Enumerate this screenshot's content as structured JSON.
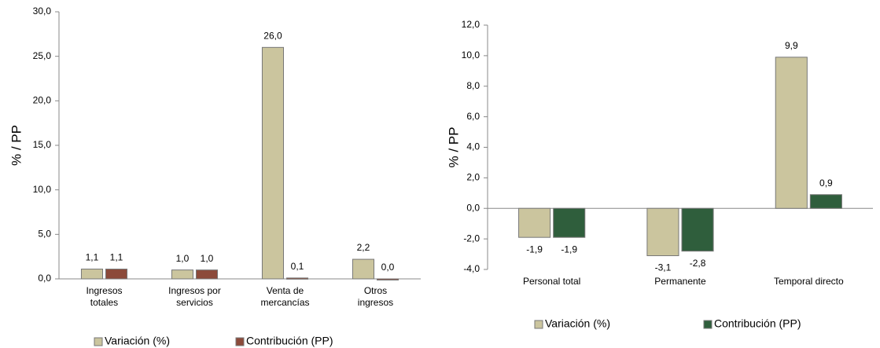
{
  "chart_data": [
    {
      "type": "bar",
      "y_label": "% / PP",
      "categories": [
        "Ingresos totales",
        "Ingresos por servicios",
        "Venta de mercancías",
        "Otros ingresos"
      ],
      "series": [
        {
          "name": "Variación (%)",
          "color": "#cbc59e",
          "values": [
            1.1,
            1.0,
            26.0,
            2.2
          ],
          "value_labels": [
            "1,1",
            "1,0",
            "26,0",
            "2,2"
          ]
        },
        {
          "name": "Contribución (PP)",
          "color": "#8c4a3a",
          "values": [
            1.1,
            1.0,
            0.1,
            0.0
          ],
          "value_labels": [
            "1,1",
            "1,0",
            "0,1",
            "0,0"
          ]
        }
      ],
      "ylim": [
        0,
        30
      ],
      "yticks": [
        {
          "value": 0,
          "label": "0,0"
        },
        {
          "value": 5,
          "label": "5,0"
        },
        {
          "value": 10,
          "label": "10,0"
        },
        {
          "value": 15,
          "label": "15,0"
        },
        {
          "value": 20,
          "label": "20,0"
        },
        {
          "value": 25,
          "label": "25,0"
        },
        {
          "value": 30,
          "label": "30,0"
        }
      ]
    },
    {
      "type": "bar",
      "y_label": "% / PP",
      "categories": [
        "Personal total",
        "Permanente",
        "Temporal directo"
      ],
      "series": [
        {
          "name": "Variación (%)",
          "color": "#cbc59e",
          "values": [
            -1.9,
            -3.1,
            9.9
          ],
          "value_labels": [
            "-1,9",
            "-3,1",
            "9,9"
          ]
        },
        {
          "name": "Contribución (PP)",
          "color": "#2f5e3c",
          "values": [
            -1.9,
            -2.8,
            0.9
          ],
          "value_labels": [
            "-1,9",
            "-2,8",
            "0,9"
          ]
        }
      ],
      "ylim": [
        -4,
        12
      ],
      "yticks": [
        {
          "value": -4,
          "label": "-4,0"
        },
        {
          "value": -2,
          "label": "-2,0"
        },
        {
          "value": 0,
          "label": "0,0"
        },
        {
          "value": 2,
          "label": "2,0"
        },
        {
          "value": 4,
          "label": "4,0"
        },
        {
          "value": 6,
          "label": "6,0"
        },
        {
          "value": 8,
          "label": "8,0"
        },
        {
          "value": 10,
          "label": "10,0"
        },
        {
          "value": 12,
          "label": "12,0"
        }
      ]
    }
  ]
}
